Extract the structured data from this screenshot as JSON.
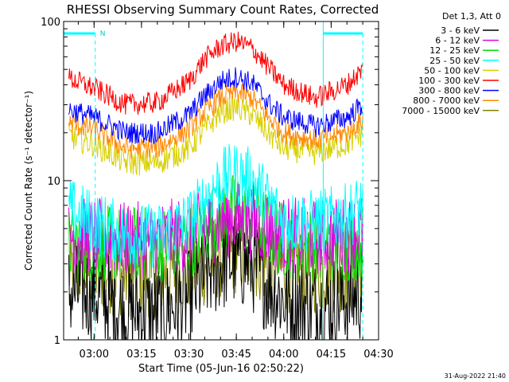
{
  "chart_data": {
    "type": "line",
    "title": "RHESSI Observing Summary Count Rates, Corrected",
    "xlabel": "Start Time (05-Jun-16 02:50:22)",
    "ylabel": "Corrected Count Rate (s⁻¹ detector⁻¹)",
    "y_scale": "log",
    "ylim": [
      1,
      100
    ],
    "xlim": [
      "02:50:22",
      "04:30:00"
    ],
    "x_ticks": [
      "03:00",
      "03:15",
      "03:30",
      "03:45",
      "04:00",
      "04:15",
      "04:30"
    ],
    "y_ticks": [
      "1",
      "10",
      "100"
    ],
    "legend_title": "Det 1,3, Att 0",
    "legend_position": "top-right",
    "timestamp": "31-Aug-2022 21:40",
    "annotations": [
      {
        "text": "N",
        "x_start": "02:50:22",
        "x_end": "03:00:22"
      },
      {
        "x_start": "04:12:30",
        "x_end": "04:25:00"
      }
    ],
    "series": [
      {
        "name": "3 - 6 keV",
        "color": "#000000",
        "x": [
          "02:52",
          "03:00",
          "03:10",
          "03:20",
          "03:30",
          "03:35",
          "03:40",
          "03:45",
          "03:50",
          "03:55",
          "04:00",
          "04:10",
          "04:20",
          "04:25"
        ],
        "y": [
          2.0,
          2.0,
          1.5,
          1.5,
          1.8,
          2.5,
          3.0,
          3.2,
          3.0,
          2.2,
          1.8,
          1.6,
          1.8,
          2.0
        ]
      },
      {
        "name": "6 - 12 keV",
        "color": "#e000e0",
        "x": [
          "02:52",
          "03:00",
          "03:10",
          "03:20",
          "03:30",
          "03:35",
          "03:40",
          "03:45",
          "03:50",
          "03:55",
          "04:00",
          "04:10",
          "04:20",
          "04:25"
        ],
        "y": [
          4.5,
          4.5,
          4.2,
          4.3,
          4.6,
          5.0,
          5.5,
          5.8,
          5.5,
          5.0,
          4.6,
          4.4,
          4.6,
          4.8
        ]
      },
      {
        "name": "12 - 25 keV",
        "color": "#00dd00",
        "x": [
          "02:52",
          "03:00",
          "03:10",
          "03:20",
          "03:30",
          "03:35",
          "03:40",
          "03:45",
          "03:50",
          "03:55",
          "04:00",
          "04:10",
          "04:20",
          "04:25"
        ],
        "y": [
          4.0,
          4.0,
          4.0,
          4.0,
          4.2,
          5.0,
          6.0,
          6.5,
          6.0,
          5.0,
          4.2,
          4.0,
          4.0,
          4.2
        ]
      },
      {
        "name": "25 - 50 keV",
        "color": "#00ffff",
        "x": [
          "02:52",
          "03:00",
          "03:10",
          "03:20",
          "03:30",
          "03:35",
          "03:40",
          "03:45",
          "03:50",
          "03:55",
          "04:00",
          "04:10",
          "04:20",
          "04:25"
        ],
        "y": [
          6.5,
          5.5,
          4.5,
          4.5,
          5.5,
          7.5,
          10.0,
          11.0,
          10.0,
          7.5,
          5.5,
          5.5,
          6.0,
          7.0
        ]
      },
      {
        "name": "50 - 100 keV",
        "color": "#d8d000",
        "x": [
          "02:52",
          "03:00",
          "03:10",
          "03:20",
          "03:30",
          "03:35",
          "03:40",
          "03:45",
          "03:50",
          "03:55",
          "04:00",
          "04:10",
          "04:20",
          "04:25"
        ],
        "y": [
          19,
          17,
          13,
          13,
          16,
          21,
          27,
          29,
          26,
          20,
          16,
          15,
          17,
          20
        ]
      },
      {
        "name": "100 - 300 keV",
        "color": "#ff0000",
        "x": [
          "02:52",
          "03:00",
          "03:10",
          "03:20",
          "03:30",
          "03:35",
          "03:40",
          "03:45",
          "03:50",
          "03:55",
          "04:00",
          "04:10",
          "04:20",
          "04:25"
        ],
        "y": [
          44,
          38,
          30,
          31,
          42,
          58,
          70,
          75,
          68,
          52,
          40,
          33,
          40,
          50
        ]
      },
      {
        "name": "300 - 800 keV",
        "color": "#0000ff",
        "x": [
          "02:52",
          "03:00",
          "03:10",
          "03:20",
          "03:30",
          "03:35",
          "03:40",
          "03:45",
          "03:50",
          "03:55",
          "04:00",
          "04:10",
          "04:20",
          "04:25"
        ],
        "y": [
          28,
          25,
          20,
          20,
          26,
          34,
          42,
          45,
          41,
          31,
          25,
          22,
          25,
          30
        ]
      },
      {
        "name": "800 - 7000 keV",
        "color": "#ff8800",
        "x": [
          "02:52",
          "03:00",
          "03:10",
          "03:20",
          "03:30",
          "03:35",
          "03:40",
          "03:45",
          "03:50",
          "03:55",
          "04:00",
          "04:10",
          "04:20",
          "04:25"
        ],
        "y": [
          23,
          21,
          16,
          16,
          21,
          27,
          33,
          36,
          33,
          25,
          20,
          18,
          20,
          24
        ]
      },
      {
        "name": "7000 - 15000 keV",
        "color": "#808000",
        "x": [
          "02:52",
          "03:00",
          "03:10",
          "03:20",
          "03:30",
          "03:35",
          "03:40",
          "03:45",
          "03:50",
          "03:55",
          "04:00",
          "04:10",
          "04:20",
          "04:25"
        ],
        "y": [
          2.8,
          2.8,
          2.6,
          2.6,
          2.8,
          3.0,
          3.4,
          3.6,
          3.4,
          3.0,
          2.8,
          2.7,
          2.8,
          2.9
        ]
      }
    ]
  }
}
